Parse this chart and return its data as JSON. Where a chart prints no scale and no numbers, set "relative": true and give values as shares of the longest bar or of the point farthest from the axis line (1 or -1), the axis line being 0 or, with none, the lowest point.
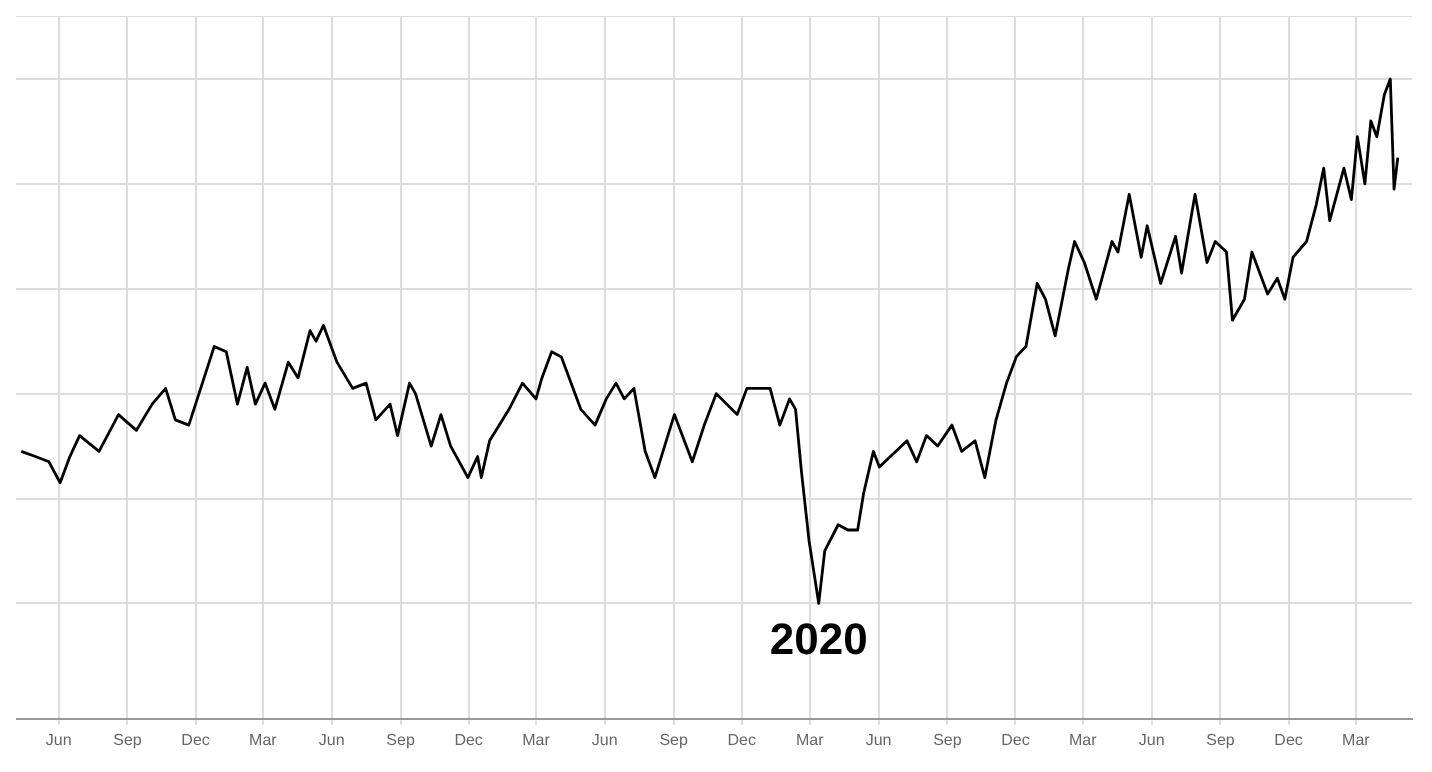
{
  "chart_data": {
    "type": "line",
    "relative": true,
    "grid": true,
    "legend": false,
    "marker": "none",
    "line_style": "solid",
    "annotations": [
      {
        "text": "2020",
        "x": "2020-03-13",
        "y": 0
      }
    ],
    "xlim": [
      "2017-04-05",
      "2022-05-15"
    ],
    "xticks": [
      {
        "value": "2017-06-01",
        "label": "Jun"
      },
      {
        "value": "2017-09-01",
        "label": "Sep"
      },
      {
        "value": "2017-12-01",
        "label": "Dec"
      },
      {
        "value": "2018-03-01",
        "label": "Mar"
      },
      {
        "value": "2018-06-01",
        "label": "Jun"
      },
      {
        "value": "2018-09-01",
        "label": "Sep"
      },
      {
        "value": "2018-12-01",
        "label": "Dec"
      },
      {
        "value": "2019-03-01",
        "label": "Mar"
      },
      {
        "value": "2019-06-01",
        "label": "Jun"
      },
      {
        "value": "2019-09-01",
        "label": "Sep"
      },
      {
        "value": "2019-12-01",
        "label": "Dec"
      },
      {
        "value": "2020-03-01",
        "label": "Mar"
      },
      {
        "value": "2020-06-01",
        "label": "Jun"
      },
      {
        "value": "2020-09-01",
        "label": "Sep"
      },
      {
        "value": "2020-12-01",
        "label": "Dec"
      },
      {
        "value": "2021-03-01",
        "label": "Mar"
      },
      {
        "value": "2021-06-01",
        "label": "Jun"
      },
      {
        "value": "2021-09-01",
        "label": "Sep"
      },
      {
        "value": "2021-12-01",
        "label": "Dec"
      },
      {
        "value": "2022-03-01",
        "label": "Mar"
      }
    ],
    "x": [
      "2017-04-12",
      "2017-05-01",
      "2017-05-19",
      "2017-06-03",
      "2017-06-16",
      "2017-06-29",
      "2017-07-25",
      "2017-08-20",
      "2017-09-13",
      "2017-10-04",
      "2017-10-22",
      "2017-11-04",
      "2017-11-22",
      "2017-12-26",
      "2018-01-11",
      "2018-01-26",
      "2018-02-08",
      "2018-02-19",
      "2018-03-04",
      "2018-03-17",
      "2018-04-04",
      "2018-04-17",
      "2018-05-03",
      "2018-05-11",
      "2018-05-21",
      "2018-06-08",
      "2018-06-29",
      "2018-07-17",
      "2018-07-30",
      "2018-08-18",
      "2018-08-28",
      "2018-09-13",
      "2018-09-21",
      "2018-10-12",
      "2018-10-25",
      "2018-11-07",
      "2018-11-30",
      "2018-12-13",
      "2018-12-18",
      "2018-12-29",
      "2019-01-24",
      "2019-02-11",
      "2019-03-01",
      "2019-03-09",
      "2019-03-22",
      "2019-04-04",
      "2019-04-30",
      "2019-05-19",
      "2019-06-03",
      "2019-06-16",
      "2019-06-27",
      "2019-07-10",
      "2019-07-25",
      "2019-08-07",
      "2019-09-02",
      "2019-09-26",
      "2019-10-12",
      "2019-10-28",
      "2019-11-25",
      "2019-12-08",
      "2020-01-08",
      "2020-01-21",
      "2020-02-03",
      "2020-02-11",
      "2020-02-19",
      "2020-02-29",
      "2020-03-13",
      "2020-03-21",
      "2020-04-08",
      "2020-04-21",
      "2020-05-04",
      "2020-05-12",
      "2020-05-25",
      "2020-06-02",
      "2020-07-09",
      "2020-07-22",
      "2020-08-04",
      "2020-08-19",
      "2020-09-07",
      "2020-09-20",
      "2020-10-08",
      "2020-10-21",
      "2020-11-05",
      "2020-11-19",
      "2020-12-02",
      "2020-12-15",
      "2020-12-30",
      "2021-01-10",
      "2021-01-23",
      "2021-02-10",
      "2021-02-18",
      "2021-03-03",
      "2021-03-19",
      "2021-04-09",
      "2021-04-17",
      "2021-05-02",
      "2021-05-18",
      "2021-05-26",
      "2021-06-13",
      "2021-07-03",
      "2021-07-11",
      "2021-07-29",
      "2021-08-14",
      "2021-08-25",
      "2021-09-09",
      "2021-09-17",
      "2021-10-03",
      "2021-10-13",
      "2021-11-03",
      "2021-11-16",
      "2021-11-26",
      "2021-12-07",
      "2021-12-25",
      "2022-01-07",
      "2022-01-17",
      "2022-01-25",
      "2022-02-13",
      "2022-02-23",
      "2022-03-03",
      "2022-03-13",
      "2022-03-21",
      "2022-03-29",
      "2022-04-08",
      "2022-04-16",
      "2022-04-21",
      "2022-04-26"
    ],
    "series": [
      {
        "color": "#000000",
        "values": [
          0.29,
          0.28,
          0.27,
          0.23,
          0.28,
          0.32,
          0.29,
          0.36,
          0.33,
          0.38,
          0.41,
          0.35,
          0.34,
          0.49,
          0.48,
          0.38,
          0.45,
          0.38,
          0.42,
          0.37,
          0.46,
          0.43,
          0.52,
          0.5,
          0.53,
          0.46,
          0.41,
          0.42,
          0.35,
          0.38,
          0.32,
          0.42,
          0.4,
          0.3,
          0.36,
          0.3,
          0.24,
          0.28,
          0.24,
          0.31,
          0.37,
          0.42,
          0.39,
          0.43,
          0.48,
          0.47,
          0.37,
          0.34,
          0.39,
          0.42,
          0.39,
          0.41,
          0.29,
          0.24,
          0.36,
          0.27,
          0.34,
          0.4,
          0.36,
          0.41,
          0.41,
          0.34,
          0.39,
          0.37,
          0.25,
          0.12,
          0,
          0.1,
          0.15,
          0.14,
          0.14,
          0.21,
          0.29,
          0.26,
          0.31,
          0.27,
          0.32,
          0.3,
          0.34,
          0.29,
          0.31,
          0.24,
          0.35,
          0.42,
          0.47,
          0.49,
          0.61,
          0.58,
          0.51,
          0.64,
          0.69,
          0.65,
          0.58,
          0.69,
          0.67,
          0.78,
          0.66,
          0.72,
          0.61,
          0.7,
          0.63,
          0.78,
          0.65,
          0.69,
          0.67,
          0.54,
          0.58,
          0.67,
          0.59,
          0.62,
          0.58,
          0.66,
          0.69,
          0.76,
          0.83,
          0.73,
          0.83,
          0.77,
          0.89,
          0.8,
          0.92,
          0.89,
          0.97,
          1,
          0.79,
          0.85
        ]
      }
    ]
  }
}
